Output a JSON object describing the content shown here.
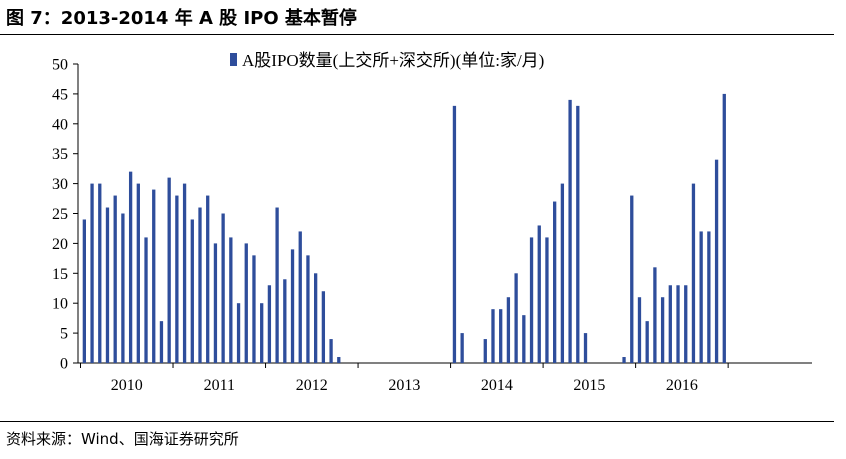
{
  "header": {
    "title": "图 7：2013-2014 年 A 股 IPO 基本暂停"
  },
  "footer": {
    "source": "资料来源：Wind、国海证券研究所"
  },
  "colors": {
    "bar": "#2e4d9b",
    "axis": "#000000"
  },
  "chart_data": {
    "type": "bar",
    "title": "",
    "xlabel": "",
    "ylabel": "",
    "ylim": [
      0,
      50
    ],
    "yticks": [
      0,
      5,
      10,
      15,
      20,
      25,
      30,
      35,
      40,
      45,
      50
    ],
    "grid": false,
    "legend_position": "top-center",
    "x_tick_labels": [
      "2010",
      "2011",
      "2012",
      "2013",
      "2014",
      "2015",
      "2016"
    ],
    "series": [
      {
        "name": "A股IPO数量(上交所+深交所)(单位:家/月)",
        "start": "2010-01",
        "values": [
          24,
          30,
          30,
          26,
          28,
          25,
          32,
          30,
          21,
          29,
          7,
          31,
          28,
          30,
          24,
          26,
          28,
          20,
          25,
          21,
          10,
          20,
          18,
          10,
          13,
          26,
          14,
          19,
          22,
          18,
          15,
          12,
          4,
          1,
          0,
          0,
          0,
          0,
          0,
          0,
          0,
          0,
          0,
          0,
          0,
          0,
          0,
          0,
          43,
          5,
          0,
          0,
          4,
          9,
          9,
          11,
          15,
          8,
          21,
          23,
          21,
          27,
          30,
          44,
          43,
          5,
          0,
          0,
          0,
          0,
          1,
          28,
          11,
          7,
          16,
          11,
          13,
          13,
          13,
          30,
          22,
          22,
          34,
          45
        ]
      }
    ]
  }
}
